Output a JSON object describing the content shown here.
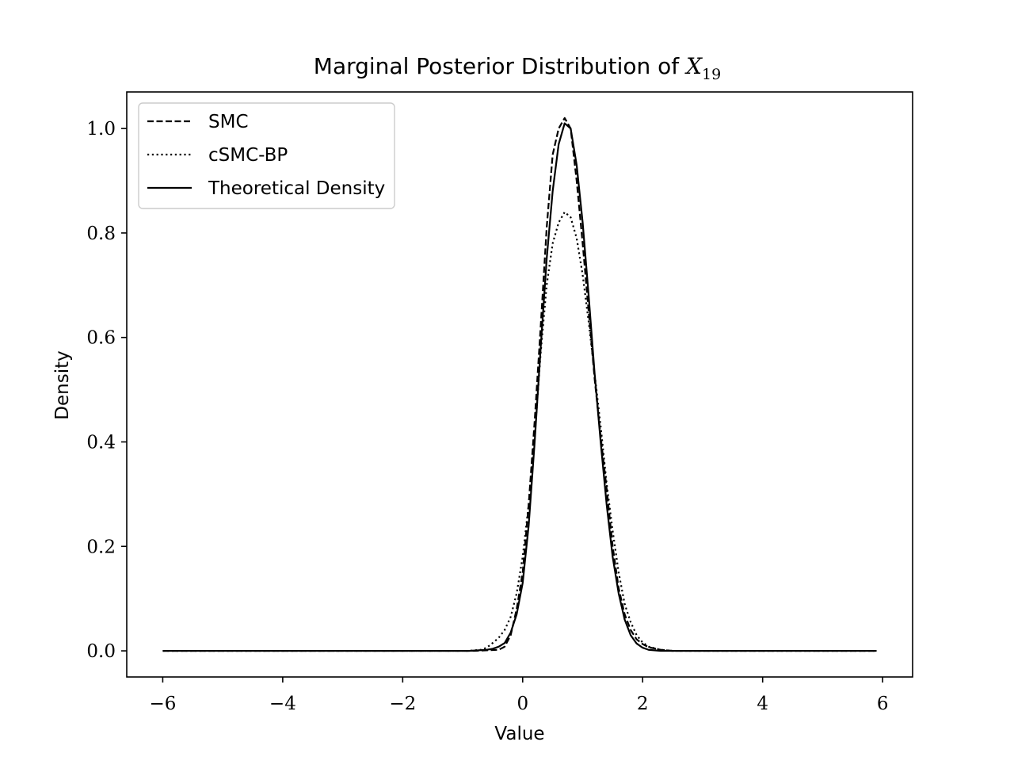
{
  "chart_data": {
    "type": "line",
    "title": "Marginal Posterior Distribution of X",
    "title_main": "Marginal Posterior Distribution of ",
    "title_math": "X",
    "title_subscript": "19",
    "xlabel": "Value",
    "ylabel": "Density",
    "xlim": [
      -6.6,
      6.5
    ],
    "ylim": [
      -0.05,
      1.07
    ],
    "xticks": [
      -6,
      -4,
      -2,
      0,
      2,
      4,
      6
    ],
    "xtick_labels": [
      "−6",
      "−4",
      "−2",
      "0",
      "2",
      "4",
      "6"
    ],
    "yticks": [
      0.0,
      0.2,
      0.4,
      0.6,
      0.8,
      1.0
    ],
    "ytick_labels": [
      "0.0",
      "0.2",
      "0.4",
      "0.6",
      "0.8",
      "1.0"
    ],
    "grid": false,
    "legend_position": "top-left",
    "series": [
      {
        "name": "SMC",
        "style": "dashed",
        "color": "#000000",
        "points": [
          [
            -6.0,
            0
          ],
          [
            -0.8,
            0
          ],
          [
            -0.4,
            0.002
          ],
          [
            -0.3,
            0.008
          ],
          [
            -0.2,
            0.03
          ],
          [
            -0.1,
            0.08
          ],
          [
            0.0,
            0.15
          ],
          [
            0.1,
            0.28
          ],
          [
            0.2,
            0.44
          ],
          [
            0.3,
            0.62
          ],
          [
            0.4,
            0.81
          ],
          [
            0.5,
            0.95
          ],
          [
            0.6,
            1.0
          ],
          [
            0.7,
            1.02
          ],
          [
            0.8,
            1.0
          ],
          [
            0.9,
            0.9
          ],
          [
            1.0,
            0.78
          ],
          [
            1.1,
            0.65
          ],
          [
            1.2,
            0.52
          ],
          [
            1.3,
            0.41
          ],
          [
            1.4,
            0.31
          ],
          [
            1.5,
            0.2
          ],
          [
            1.6,
            0.12
          ],
          [
            1.7,
            0.07
          ],
          [
            1.8,
            0.04
          ],
          [
            1.9,
            0.022
          ],
          [
            2.0,
            0.013
          ],
          [
            2.1,
            0.007
          ],
          [
            2.3,
            0.002
          ],
          [
            2.5,
            0
          ],
          [
            5.9,
            0
          ]
        ]
      },
      {
        "name": "cSMC-BP",
        "style": "dotted",
        "color": "#000000",
        "points": [
          [
            -6.0,
            0
          ],
          [
            -0.9,
            0
          ],
          [
            -0.7,
            0.002
          ],
          [
            -0.6,
            0.006
          ],
          [
            -0.5,
            0.015
          ],
          [
            -0.4,
            0.025
          ],
          [
            -0.3,
            0.04
          ],
          [
            -0.2,
            0.065
          ],
          [
            -0.1,
            0.11
          ],
          [
            0.0,
            0.18
          ],
          [
            0.1,
            0.28
          ],
          [
            0.2,
            0.41
          ],
          [
            0.3,
            0.57
          ],
          [
            0.4,
            0.7
          ],
          [
            0.5,
            0.78
          ],
          [
            0.6,
            0.82
          ],
          [
            0.7,
            0.84
          ],
          [
            0.8,
            0.83
          ],
          [
            0.9,
            0.79
          ],
          [
            1.0,
            0.72
          ],
          [
            1.1,
            0.63
          ],
          [
            1.2,
            0.53
          ],
          [
            1.3,
            0.43
          ],
          [
            1.4,
            0.32
          ],
          [
            1.5,
            0.23
          ],
          [
            1.6,
            0.15
          ],
          [
            1.7,
            0.09
          ],
          [
            1.8,
            0.055
          ],
          [
            1.9,
            0.03
          ],
          [
            2.0,
            0.016
          ],
          [
            2.1,
            0.008
          ],
          [
            2.3,
            0.002
          ],
          [
            2.5,
            0
          ],
          [
            5.9,
            0
          ]
        ]
      },
      {
        "name": "Theoretical Density",
        "style": "solid",
        "color": "#000000",
        "points": [
          [
            -6.0,
            0
          ],
          [
            -0.9,
            0
          ],
          [
            -0.6,
            0.002
          ],
          [
            -0.5,
            0.004
          ],
          [
            -0.4,
            0.008
          ],
          [
            -0.3,
            0.015
          ],
          [
            -0.2,
            0.035
          ],
          [
            -0.1,
            0.07
          ],
          [
            0.0,
            0.13
          ],
          [
            0.1,
            0.24
          ],
          [
            0.2,
            0.4
          ],
          [
            0.3,
            0.58
          ],
          [
            0.4,
            0.75
          ],
          [
            0.5,
            0.88
          ],
          [
            0.6,
            0.97
          ],
          [
            0.7,
            1.01
          ],
          [
            0.8,
            1.0
          ],
          [
            0.9,
            0.93
          ],
          [
            1.0,
            0.82
          ],
          [
            1.1,
            0.68
          ],
          [
            1.2,
            0.53
          ],
          [
            1.3,
            0.4
          ],
          [
            1.4,
            0.28
          ],
          [
            1.5,
            0.18
          ],
          [
            1.6,
            0.11
          ],
          [
            1.7,
            0.06
          ],
          [
            1.8,
            0.03
          ],
          [
            1.9,
            0.014
          ],
          [
            2.0,
            0.006
          ],
          [
            2.1,
            0.002
          ],
          [
            2.3,
            0
          ],
          [
            5.9,
            0
          ]
        ]
      }
    ]
  }
}
